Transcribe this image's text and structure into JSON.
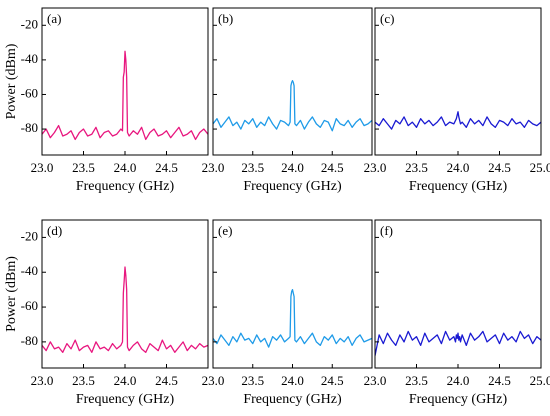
{
  "chart_data": [
    {
      "type": "line",
      "label": "(a)",
      "xlabel": "Frequency (GHz)",
      "ylabel": "Power (dBm)",
      "color": "#e8177f",
      "x": [
        23.0,
        23.05,
        23.1,
        23.15,
        23.2,
        23.25,
        23.3,
        23.35,
        23.4,
        23.45,
        23.5,
        23.55,
        23.6,
        23.65,
        23.7,
        23.75,
        23.8,
        23.85,
        23.9,
        23.95,
        23.97,
        23.98,
        23.99,
        24.0,
        24.01,
        24.02,
        24.03,
        24.05,
        24.1,
        24.15,
        24.2,
        24.25,
        24.3,
        24.35,
        24.4,
        24.45,
        24.5,
        24.55,
        24.6,
        24.65,
        24.7,
        24.75,
        24.8,
        24.85,
        24.9,
        24.95,
        25.0
      ],
      "values": [
        -83,
        -80,
        -85,
        -82,
        -78,
        -84,
        -83,
        -81,
        -86,
        -82,
        -80,
        -84,
        -83,
        -79,
        -85,
        -82,
        -81,
        -84,
        -83,
        -80,
        -81,
        -50,
        -47,
        -35,
        -40,
        -50,
        -82,
        -84,
        -81,
        -83,
        -79,
        -86,
        -82,
        -80,
        -84,
        -83,
        -81,
        -85,
        -82,
        -79,
        -84,
        -83,
        -81,
        -86,
        -82,
        -80,
        -83
      ],
      "xlim": [
        23,
        25
      ],
      "xticks": [
        {
          "value": 23,
          "label": "23.0"
        },
        {
          "value": 23.5,
          "label": "23.5"
        },
        {
          "value": 24,
          "label": "24.0"
        },
        {
          "value": 24.5,
          "label": "24.5"
        }
      ],
      "ylim": [
        -95,
        -10
      ],
      "yticks": [
        -20,
        -40,
        -60,
        -80
      ],
      "ytick_labels": true
    },
    {
      "type": "line",
      "label": "(b)",
      "xlabel": "Frequency (GHz)",
      "color": "#1f9be8",
      "x": [
        23.0,
        23.05,
        23.1,
        23.15,
        23.2,
        23.25,
        23.3,
        23.35,
        23.4,
        23.45,
        23.5,
        23.55,
        23.6,
        23.65,
        23.7,
        23.75,
        23.8,
        23.85,
        23.9,
        23.95,
        23.97,
        23.98,
        23.99,
        24.0,
        24.01,
        24.02,
        24.03,
        24.05,
        24.1,
        24.15,
        24.2,
        24.25,
        24.3,
        24.35,
        24.4,
        24.45,
        24.5,
        24.55,
        24.6,
        24.65,
        24.7,
        24.75,
        24.8,
        24.85,
        24.9,
        24.95,
        25.0
      ],
      "values": [
        -77,
        -74,
        -79,
        -76,
        -73,
        -78,
        -76,
        -80,
        -75,
        -77,
        -74,
        -79,
        -76,
        -78,
        -73,
        -77,
        -80,
        -75,
        -76,
        -78,
        -76,
        -55,
        -53,
        -52,
        -53,
        -55,
        -77,
        -78,
        -75,
        -80,
        -76,
        -73,
        -77,
        -79,
        -75,
        -76,
        -81,
        -74,
        -77,
        -78,
        -75,
        -79,
        -76,
        -74,
        -78,
        -77,
        -75
      ],
      "xlim": [
        23,
        25
      ],
      "xticks": [
        {
          "value": 23,
          "label": "23.0"
        },
        {
          "value": 23.5,
          "label": "23.5"
        },
        {
          "value": 24,
          "label": "24.0"
        },
        {
          "value": 24.5,
          "label": "24.5"
        }
      ],
      "ylim": [
        -95,
        -10
      ],
      "yticks": [
        -20,
        -40,
        -60,
        -80
      ],
      "ytick_labels": false
    },
    {
      "type": "line",
      "label": "(c)",
      "xlabel": "Frequency (GHz)",
      "color": "#1a1ad2",
      "x": [
        23.0,
        23.05,
        23.1,
        23.15,
        23.2,
        23.25,
        23.3,
        23.35,
        23.4,
        23.45,
        23.5,
        23.55,
        23.6,
        23.65,
        23.7,
        23.75,
        23.8,
        23.85,
        23.9,
        23.95,
        23.97,
        23.98,
        23.99,
        24.0,
        24.01,
        24.02,
        24.03,
        24.05,
        24.1,
        24.15,
        24.2,
        24.25,
        24.3,
        24.35,
        24.4,
        24.45,
        24.5,
        24.55,
        24.6,
        24.65,
        24.7,
        24.75,
        24.8,
        24.85,
        24.9,
        24.95,
        25.0
      ],
      "values": [
        -76,
        -78,
        -74,
        -77,
        -80,
        -75,
        -77,
        -73,
        -78,
        -76,
        -79,
        -74,
        -77,
        -75,
        -78,
        -76,
        -73,
        -78,
        -76,
        -77,
        -75,
        -74,
        -72,
        -70,
        -73,
        -75,
        -77,
        -76,
        -79,
        -74,
        -77,
        -75,
        -78,
        -73,
        -77,
        -79,
        -75,
        -76,
        -78,
        -74,
        -77,
        -76,
        -79,
        -75,
        -77,
        -78,
        -76
      ],
      "xlim": [
        23,
        25
      ],
      "xticks": [
        {
          "value": 23,
          "label": "23.0"
        },
        {
          "value": 23.5,
          "label": "23.5"
        },
        {
          "value": 24,
          "label": "24.0"
        },
        {
          "value": 24.5,
          "label": "24.5"
        },
        {
          "value": 25,
          "label": "25.0"
        }
      ],
      "ylim": [
        -95,
        -10
      ],
      "yticks": [
        -20,
        -40,
        -60,
        -80
      ],
      "ytick_labels": false
    },
    {
      "type": "line",
      "label": "(d)",
      "xlabel": "Frequency (GHz)",
      "ylabel": "Power (dBm)",
      "color": "#e8177f",
      "x": [
        23.0,
        23.05,
        23.1,
        23.15,
        23.2,
        23.25,
        23.3,
        23.35,
        23.4,
        23.45,
        23.5,
        23.55,
        23.6,
        23.65,
        23.7,
        23.75,
        23.8,
        23.85,
        23.9,
        23.95,
        23.97,
        23.98,
        23.99,
        24.0,
        24.01,
        24.02,
        24.03,
        24.05,
        24.1,
        24.15,
        24.2,
        24.25,
        24.3,
        24.35,
        24.4,
        24.45,
        24.5,
        24.55,
        24.6,
        24.65,
        24.7,
        24.75,
        24.8,
        24.85,
        24.9,
        24.95,
        25.0
      ],
      "values": [
        -82,
        -85,
        -80,
        -84,
        -83,
        -86,
        -81,
        -84,
        -79,
        -85,
        -83,
        -82,
        -86,
        -80,
        -84,
        -83,
        -85,
        -81,
        -84,
        -82,
        -80,
        -52,
        -45,
        -37,
        -42,
        -50,
        -83,
        -85,
        -82,
        -80,
        -84,
        -86,
        -81,
        -83,
        -85,
        -79,
        -84,
        -82,
        -86,
        -83,
        -80,
        -85,
        -82,
        -84,
        -81,
        -83,
        -82
      ],
      "xlim": [
        23,
        25
      ],
      "xticks": [
        {
          "value": 23,
          "label": "23.0"
        },
        {
          "value": 23.5,
          "label": "23.5"
        },
        {
          "value": 24,
          "label": "24.0"
        },
        {
          "value": 24.5,
          "label": "24.5"
        }
      ],
      "ylim": [
        -95,
        -10
      ],
      "yticks": [
        -20,
        -40,
        -60,
        -80
      ],
      "ytick_labels": true
    },
    {
      "type": "line",
      "label": "(e)",
      "xlabel": "Frequency (GHz)",
      "color": "#1f9be8",
      "x": [
        23.0,
        23.05,
        23.1,
        23.15,
        23.2,
        23.25,
        23.3,
        23.35,
        23.4,
        23.45,
        23.5,
        23.55,
        23.6,
        23.65,
        23.7,
        23.75,
        23.8,
        23.85,
        23.9,
        23.95,
        23.97,
        23.98,
        23.99,
        24.0,
        24.01,
        24.02,
        24.03,
        24.05,
        24.1,
        24.15,
        24.2,
        24.25,
        24.3,
        24.35,
        24.4,
        24.45,
        24.5,
        24.55,
        24.6,
        24.65,
        24.7,
        24.75,
        24.8,
        24.85,
        24.9,
        24.95,
        25.0
      ],
      "values": [
        -78,
        -81,
        -76,
        -79,
        -82,
        -77,
        -80,
        -75,
        -79,
        -78,
        -81,
        -76,
        -80,
        -78,
        -83,
        -77,
        -79,
        -76,
        -80,
        -78,
        -77,
        -54,
        -51,
        -50,
        -52,
        -54,
        -79,
        -80,
        -77,
        -81,
        -78,
        -75,
        -80,
        -82,
        -77,
        -79,
        -76,
        -81,
        -78,
        -80,
        -77,
        -82,
        -78,
        -76,
        -80,
        -79,
        -78
      ],
      "xlim": [
        23,
        25
      ],
      "xticks": [
        {
          "value": 23,
          "label": "23.0"
        },
        {
          "value": 23.5,
          "label": "23.5"
        },
        {
          "value": 24,
          "label": "24.0"
        },
        {
          "value": 24.5,
          "label": "24.5"
        }
      ],
      "ylim": [
        -95,
        -10
      ],
      "yticks": [
        -20,
        -40,
        -60,
        -80
      ],
      "ytick_labels": false
    },
    {
      "type": "line",
      "label": "(f)",
      "xlabel": "Frequency (GHz)",
      "color": "#1a1ad2",
      "x": [
        23.0,
        23.05,
        23.1,
        23.15,
        23.2,
        23.25,
        23.3,
        23.35,
        23.4,
        23.45,
        23.5,
        23.55,
        23.6,
        23.65,
        23.7,
        23.75,
        23.8,
        23.85,
        23.9,
        23.95,
        23.97,
        23.98,
        23.99,
        24.0,
        24.01,
        24.02,
        24.03,
        24.05,
        24.1,
        24.15,
        24.2,
        24.25,
        24.3,
        24.35,
        24.4,
        24.45,
        24.5,
        24.55,
        24.6,
        24.65,
        24.7,
        24.75,
        24.8,
        24.85,
        24.9,
        24.95,
        25.0
      ],
      "values": [
        -88,
        -76,
        -81,
        -75,
        -79,
        -82,
        -76,
        -80,
        -74,
        -79,
        -77,
        -82,
        -75,
        -80,
        -78,
        -76,
        -81,
        -74,
        -79,
        -77,
        -80,
        -76,
        -78,
        -75,
        -79,
        -77,
        -80,
        -76,
        -82,
        -75,
        -79,
        -77,
        -74,
        -80,
        -78,
        -76,
        -81,
        -75,
        -79,
        -77,
        -80,
        -74,
        -78,
        -76,
        -81,
        -77,
        -79
      ],
      "xlim": [
        23,
        25
      ],
      "xticks": [
        {
          "value": 23,
          "label": "23.0"
        },
        {
          "value": 23.5,
          "label": "23.5"
        },
        {
          "value": 24,
          "label": "24.0"
        },
        {
          "value": 24.5,
          "label": "24.5"
        },
        {
          "value": 25,
          "label": "25.0"
        }
      ],
      "ylim": [
        -95,
        -10
      ],
      "yticks": [
        -20,
        -40,
        -60,
        -80
      ],
      "ytick_labels": false
    }
  ]
}
